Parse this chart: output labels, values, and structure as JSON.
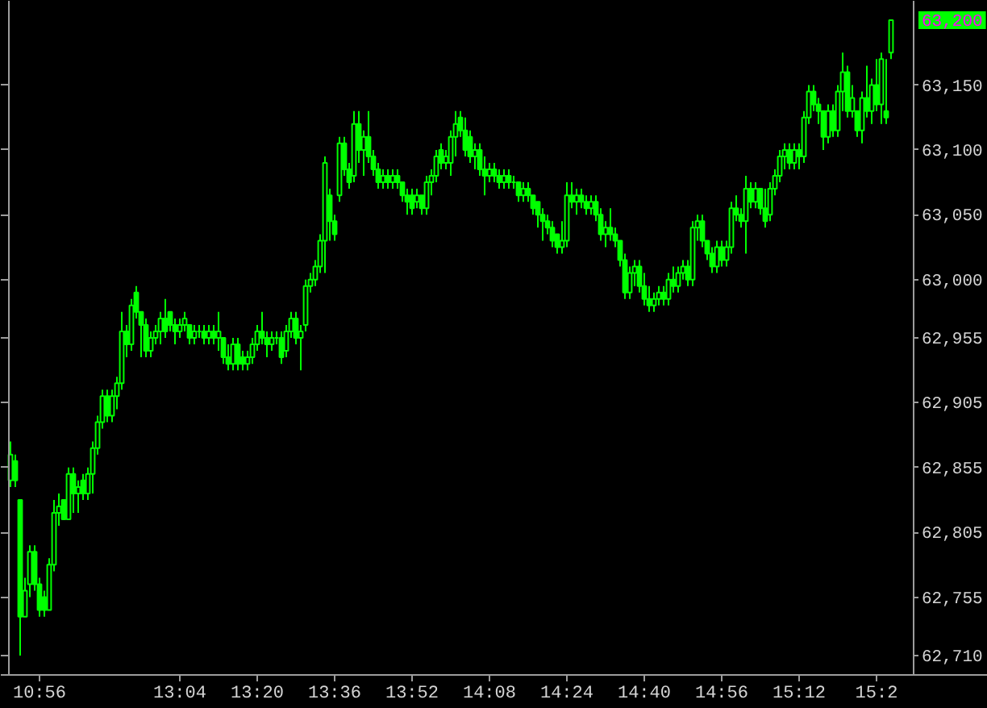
{
  "chart_data": {
    "type": "candlestick",
    "color": "#00ff00",
    "grid": false,
    "categories": [
      null,
      null,
      null,
      null,
      null,
      null,
      "10:56",
      null,
      null,
      null,
      null,
      null,
      null,
      null,
      null,
      null,
      null,
      null,
      null,
      null,
      null,
      null,
      null,
      null,
      null,
      null,
      null,
      null,
      null,
      null,
      null,
      null,
      null,
      null,
      null,
      "13:04",
      null,
      null,
      null,
      null,
      null,
      null,
      null,
      null,
      null,
      null,
      null,
      null,
      null,
      null,
      null,
      "13:20",
      null,
      null,
      null,
      null,
      null,
      null,
      null,
      null,
      null,
      null,
      null,
      null,
      null,
      null,
      null,
      "13:36",
      null,
      null,
      null,
      null,
      null,
      null,
      null,
      null,
      null,
      null,
      null,
      null,
      null,
      null,
      null,
      "13:52",
      null,
      null,
      null,
      null,
      null,
      null,
      null,
      null,
      null,
      null,
      null,
      null,
      null,
      null,
      null,
      "14:08",
      null,
      null,
      null,
      null,
      null,
      null,
      null,
      null,
      null,
      null,
      null,
      null,
      null,
      null,
      null,
      "14:24",
      null,
      null,
      null,
      null,
      null,
      null,
      null,
      null,
      null,
      null,
      null,
      null,
      null,
      null,
      null,
      "14:40",
      null,
      null,
      null,
      null,
      null,
      null,
      null,
      null,
      null,
      null,
      null,
      null,
      null,
      null,
      null,
      "14:56",
      null,
      null,
      null,
      null,
      null,
      null,
      null,
      null,
      null,
      null,
      null,
      null,
      null,
      null,
      null,
      "15:12",
      null,
      null,
      null,
      null,
      null,
      null,
      null,
      null,
      null,
      null,
      null,
      null,
      null,
      null,
      null,
      "15:2",
      null,
      null,
      null
    ],
    "ohlc": [
      [
        62845,
        62875,
        62840,
        62865
      ],
      [
        62860,
        62865,
        62840,
        62845
      ],
      [
        62830,
        62830,
        62710,
        62740
      ],
      [
        62740,
        62770,
        62740,
        62760
      ],
      [
        62765,
        62795,
        62755,
        62790
      ],
      [
        62790,
        62795,
        62760,
        62765
      ],
      [
        62765,
        62770,
        62740,
        62745
      ],
      [
        62755,
        62760,
        62740,
        62745
      ],
      [
        62745,
        62785,
        62745,
        62780
      ],
      [
        62780,
        62830,
        62775,
        62820
      ],
      [
        62820,
        62835,
        62810,
        62825
      ],
      [
        62830,
        62830,
        62815,
        62815
      ],
      [
        62815,
        62855,
        62815,
        62850
      ],
      [
        62850,
        62855,
        62820,
        62835
      ],
      [
        62835,
        62845,
        62820,
        62840
      ],
      [
        62845,
        62850,
        62830,
        62835
      ],
      [
        62835,
        62855,
        62830,
        62850
      ],
      [
        62850,
        62875,
        62835,
        62870
      ],
      [
        62870,
        62895,
        62865,
        62890
      ],
      [
        62890,
        62915,
        62885,
        62910
      ],
      [
        62910,
        62915,
        62890,
        62895
      ],
      [
        62895,
        62915,
        62890,
        62910
      ],
      [
        62910,
        62925,
        62900,
        62920
      ],
      [
        62920,
        62975,
        62915,
        62960
      ],
      [
        62960,
        62965,
        62940,
        62950
      ],
      [
        62950,
        62985,
        62945,
        62980
      ],
      [
        62990,
        62995,
        62970,
        62975
      ],
      [
        62975,
        62975,
        62940,
        62965
      ],
      [
        62965,
        62970,
        62940,
        62945
      ],
      [
        62945,
        62960,
        62940,
        62955
      ],
      [
        62955,
        62965,
        62950,
        62960
      ],
      [
        62960,
        62975,
        62950,
        62970
      ],
      [
        62970,
        62985,
        62955,
        62960
      ],
      [
        62975,
        62975,
        62960,
        62965
      ],
      [
        62965,
        62970,
        62950,
        62960
      ],
      [
        62960,
        62970,
        62955,
        62965
      ],
      [
        62965,
        62975,
        62960,
        62970
      ],
      [
        62965,
        62965,
        62950,
        62955
      ],
      [
        62955,
        62965,
        62950,
        62960
      ],
      [
        62960,
        62965,
        62955,
        62960
      ],
      [
        62960,
        62965,
        62950,
        62955
      ],
      [
        62955,
        62965,
        62950,
        62960
      ],
      [
        62960,
        62965,
        62950,
        62955
      ],
      [
        62955,
        62975,
        62945,
        62960
      ],
      [
        62955,
        62955,
        62935,
        62940
      ],
      [
        62940,
        62950,
        62930,
        62935
      ],
      [
        62935,
        62955,
        62930,
        62950
      ],
      [
        62950,
        62955,
        62930,
        62935
      ],
      [
        62940,
        62945,
        62930,
        62935
      ],
      [
        62935,
        62945,
        62930,
        62940
      ],
      [
        62940,
        62955,
        62935,
        62950
      ],
      [
        62950,
        62965,
        62945,
        62960
      ],
      [
        62960,
        62975,
        62950,
        62955
      ],
      [
        62955,
        62960,
        62940,
        62950
      ],
      [
        62950,
        62960,
        62945,
        62955
      ],
      [
        62955,
        62960,
        62950,
        62955
      ],
      [
        62955,
        62960,
        62935,
        62940
      ],
      [
        62945,
        62965,
        62940,
        62960
      ],
      [
        62960,
        62975,
        62955,
        62970
      ],
      [
        62970,
        62975,
        62950,
        62955
      ],
      [
        62955,
        62965,
        62930,
        62960
      ],
      [
        62965,
        63000,
        62960,
        62995
      ],
      [
        62995,
        63005,
        62990,
        63000
      ],
      [
        63000,
        63015,
        62995,
        63010
      ],
      [
        63010,
        63035,
        63005,
        63030
      ],
      [
        63030,
        63095,
        63005,
        63090
      ],
      [
        63065,
        63070,
        63030,
        63045
      ],
      [
        63045,
        63050,
        63030,
        63035
      ],
      [
        63065,
        63110,
        63060,
        63105
      ],
      [
        63105,
        63110,
        63080,
        63085
      ],
      [
        63085,
        63090,
        63070,
        63075
      ],
      [
        63080,
        63130,
        63075,
        63120
      ],
      [
        63120,
        63130,
        63090,
        63100
      ],
      [
        63100,
        63115,
        63080,
        63110
      ],
      [
        63110,
        63130,
        63090,
        63095
      ],
      [
        63095,
        63100,
        63080,
        63085
      ],
      [
        63085,
        63090,
        63070,
        63075
      ],
      [
        63075,
        63085,
        63070,
        63080
      ],
      [
        63080,
        63085,
        63070,
        63075
      ],
      [
        63075,
        63085,
        63070,
        63080
      ],
      [
        63080,
        63085,
        63070,
        63075
      ],
      [
        63075,
        63075,
        63060,
        63065
      ],
      [
        63065,
        63070,
        63050,
        63060
      ],
      [
        63065,
        63070,
        63050,
        63055
      ],
      [
        63060,
        63070,
        63055,
        63065
      ],
      [
        63065,
        63065,
        63050,
        63055
      ],
      [
        63055,
        63080,
        63050,
        63075
      ],
      [
        63075,
        63085,
        63065,
        63080
      ],
      [
        63080,
        63100,
        63075,
        63095
      ],
      [
        63100,
        63105,
        63085,
        63090
      ],
      [
        63090,
        63100,
        63085,
        63095
      ],
      [
        63090,
        63115,
        63080,
        63110
      ],
      [
        63110,
        63130,
        63095,
        63120
      ],
      [
        63125,
        63130,
        63110,
        63115
      ],
      [
        63115,
        63125,
        63095,
        63100
      ],
      [
        63110,
        63115,
        63090,
        63095
      ],
      [
        63095,
        63105,
        63085,
        63100
      ],
      [
        63100,
        63105,
        63080,
        63085
      ],
      [
        63085,
        63095,
        63065,
        63080
      ],
      [
        63080,
        63090,
        63075,
        63085
      ],
      [
        63085,
        63090,
        63075,
        63080
      ],
      [
        63080,
        63085,
        63070,
        63075
      ],
      [
        63075,
        63085,
        63070,
        63080
      ],
      [
        63080,
        63085,
        63070,
        63075
      ],
      [
        63075,
        63080,
        63070,
        63075
      ],
      [
        63075,
        63075,
        63060,
        63065
      ],
      [
        63065,
        63075,
        63060,
        63070
      ],
      [
        63070,
        63075,
        63060,
        63065
      ],
      [
        63065,
        63065,
        63050,
        63055
      ],
      [
        63060,
        63060,
        63040,
        63050
      ],
      [
        63050,
        63055,
        63030,
        63045
      ],
      [
        63045,
        63050,
        63035,
        63040
      ],
      [
        63040,
        63045,
        63025,
        63030
      ],
      [
        63035,
        63035,
        63020,
        63025
      ],
      [
        63025,
        63045,
        63020,
        63030
      ],
      [
        63030,
        63075,
        63025,
        63065
      ],
      [
        63065,
        63075,
        63055,
        63060
      ],
      [
        63060,
        63070,
        63050,
        63065
      ],
      [
        63065,
        63070,
        63055,
        63060
      ],
      [
        63060,
        63065,
        63050,
        63055
      ],
      [
        63055,
        63065,
        63050,
        63060
      ],
      [
        63060,
        63065,
        63045,
        63050
      ],
      [
        63050,
        63055,
        63030,
        63035
      ],
      [
        63035,
        63045,
        63025,
        63040
      ],
      [
        63040,
        63055,
        63030,
        63035
      ],
      [
        63035,
        63040,
        63025,
        63030
      ],
      [
        63030,
        63030,
        63010,
        63015
      ],
      [
        63015,
        63020,
        62985,
        62990
      ],
      [
        62990,
        63010,
        62985,
        63005
      ],
      [
        63005,
        63015,
        62995,
        63010
      ],
      [
        63010,
        63015,
        62990,
        62995
      ],
      [
        62995,
        63005,
        62980,
        62985
      ],
      [
        62985,
        62995,
        62975,
        62980
      ],
      [
        62980,
        62990,
        62975,
        62985
      ],
      [
        62985,
        62995,
        62980,
        62990
      ],
      [
        62990,
        62995,
        62980,
        62985
      ],
      [
        62985,
        63005,
        62980,
        63000
      ],
      [
        63000,
        63010,
        62990,
        62995
      ],
      [
        62995,
        63010,
        62990,
        63005
      ],
      [
        63005,
        63015,
        63000,
        63010
      ],
      [
        63010,
        63015,
        62995,
        63000
      ],
      [
        63000,
        63045,
        62995,
        63040
      ],
      [
        63040,
        63050,
        63030,
        63045
      ],
      [
        63045,
        63050,
        63025,
        63030
      ],
      [
        63030,
        63030,
        63015,
        63020
      ],
      [
        63020,
        63025,
        63005,
        63010
      ],
      [
        63010,
        63030,
        63005,
        63025
      ],
      [
        63025,
        63030,
        63010,
        63015
      ],
      [
        63015,
        63030,
        63010,
        63025
      ],
      [
        63025,
        63060,
        63020,
        63055
      ],
      [
        63055,
        63065,
        63045,
        63050
      ],
      [
        63050,
        63055,
        63040,
        63045
      ],
      [
        63045,
        63080,
        63020,
        63070
      ],
      [
        63070,
        63075,
        63055,
        63060
      ],
      [
        63060,
        63075,
        63055,
        63070
      ],
      [
        63070,
        63070,
        63050,
        63055
      ],
      [
        63055,
        63070,
        63040,
        63045
      ],
      [
        63050,
        63075,
        63045,
        63070
      ],
      [
        63070,
        63085,
        63065,
        63080
      ],
      [
        63080,
        63100,
        63075,
        63095
      ],
      [
        63095,
        63105,
        63085,
        63100
      ],
      [
        63100,
        63105,
        63085,
        63090
      ],
      [
        63090,
        63105,
        63085,
        63100
      ],
      [
        63100,
        63105,
        63085,
        63095
      ],
      [
        63095,
        63130,
        63090,
        63125
      ],
      [
        63125,
        63150,
        63120,
        63145
      ],
      [
        63145,
        63150,
        63130,
        63135
      ],
      [
        63135,
        63140,
        63120,
        63130
      ],
      [
        63130,
        63130,
        63100,
        63110
      ],
      [
        63110,
        63135,
        63105,
        63130
      ],
      [
        63130,
        63135,
        63110,
        63115
      ],
      [
        63115,
        63150,
        63110,
        63145
      ],
      [
        63145,
        63175,
        63130,
        63160
      ],
      [
        63160,
        63165,
        63125,
        63130
      ],
      [
        63130,
        63150,
        63125,
        63140
      ],
      [
        63130,
        63130,
        63110,
        63115
      ],
      [
        63115,
        63145,
        63105,
        63140
      ],
      [
        63140,
        63165,
        63125,
        63130
      ],
      [
        63130,
        63155,
        63120,
        63150
      ],
      [
        63150,
        63170,
        63130,
        63135
      ],
      [
        63135,
        63175,
        63120,
        63170
      ],
      [
        63130,
        63170,
        63120,
        63125
      ],
      [
        63175,
        63200,
        63170,
        63200
      ]
    ],
    "ylim": [
      62695,
      63215
    ],
    "yticks": [
      {
        "value": 62710,
        "label": "62,710"
      },
      {
        "value": 62755,
        "label": "62,755"
      },
      {
        "value": 62805,
        "label": "62,805"
      },
      {
        "value": 62855,
        "label": "62,855"
      },
      {
        "value": 62905,
        "label": "62,905"
      },
      {
        "value": 62955,
        "label": "62,955"
      },
      {
        "value": 63000,
        "label": "63,000"
      },
      {
        "value": 63050,
        "label": "63,050"
      },
      {
        "value": 63100,
        "label": "63,100"
      },
      {
        "value": 63150,
        "label": "63,150"
      }
    ],
    "annotations": [
      "63,200"
    ]
  }
}
